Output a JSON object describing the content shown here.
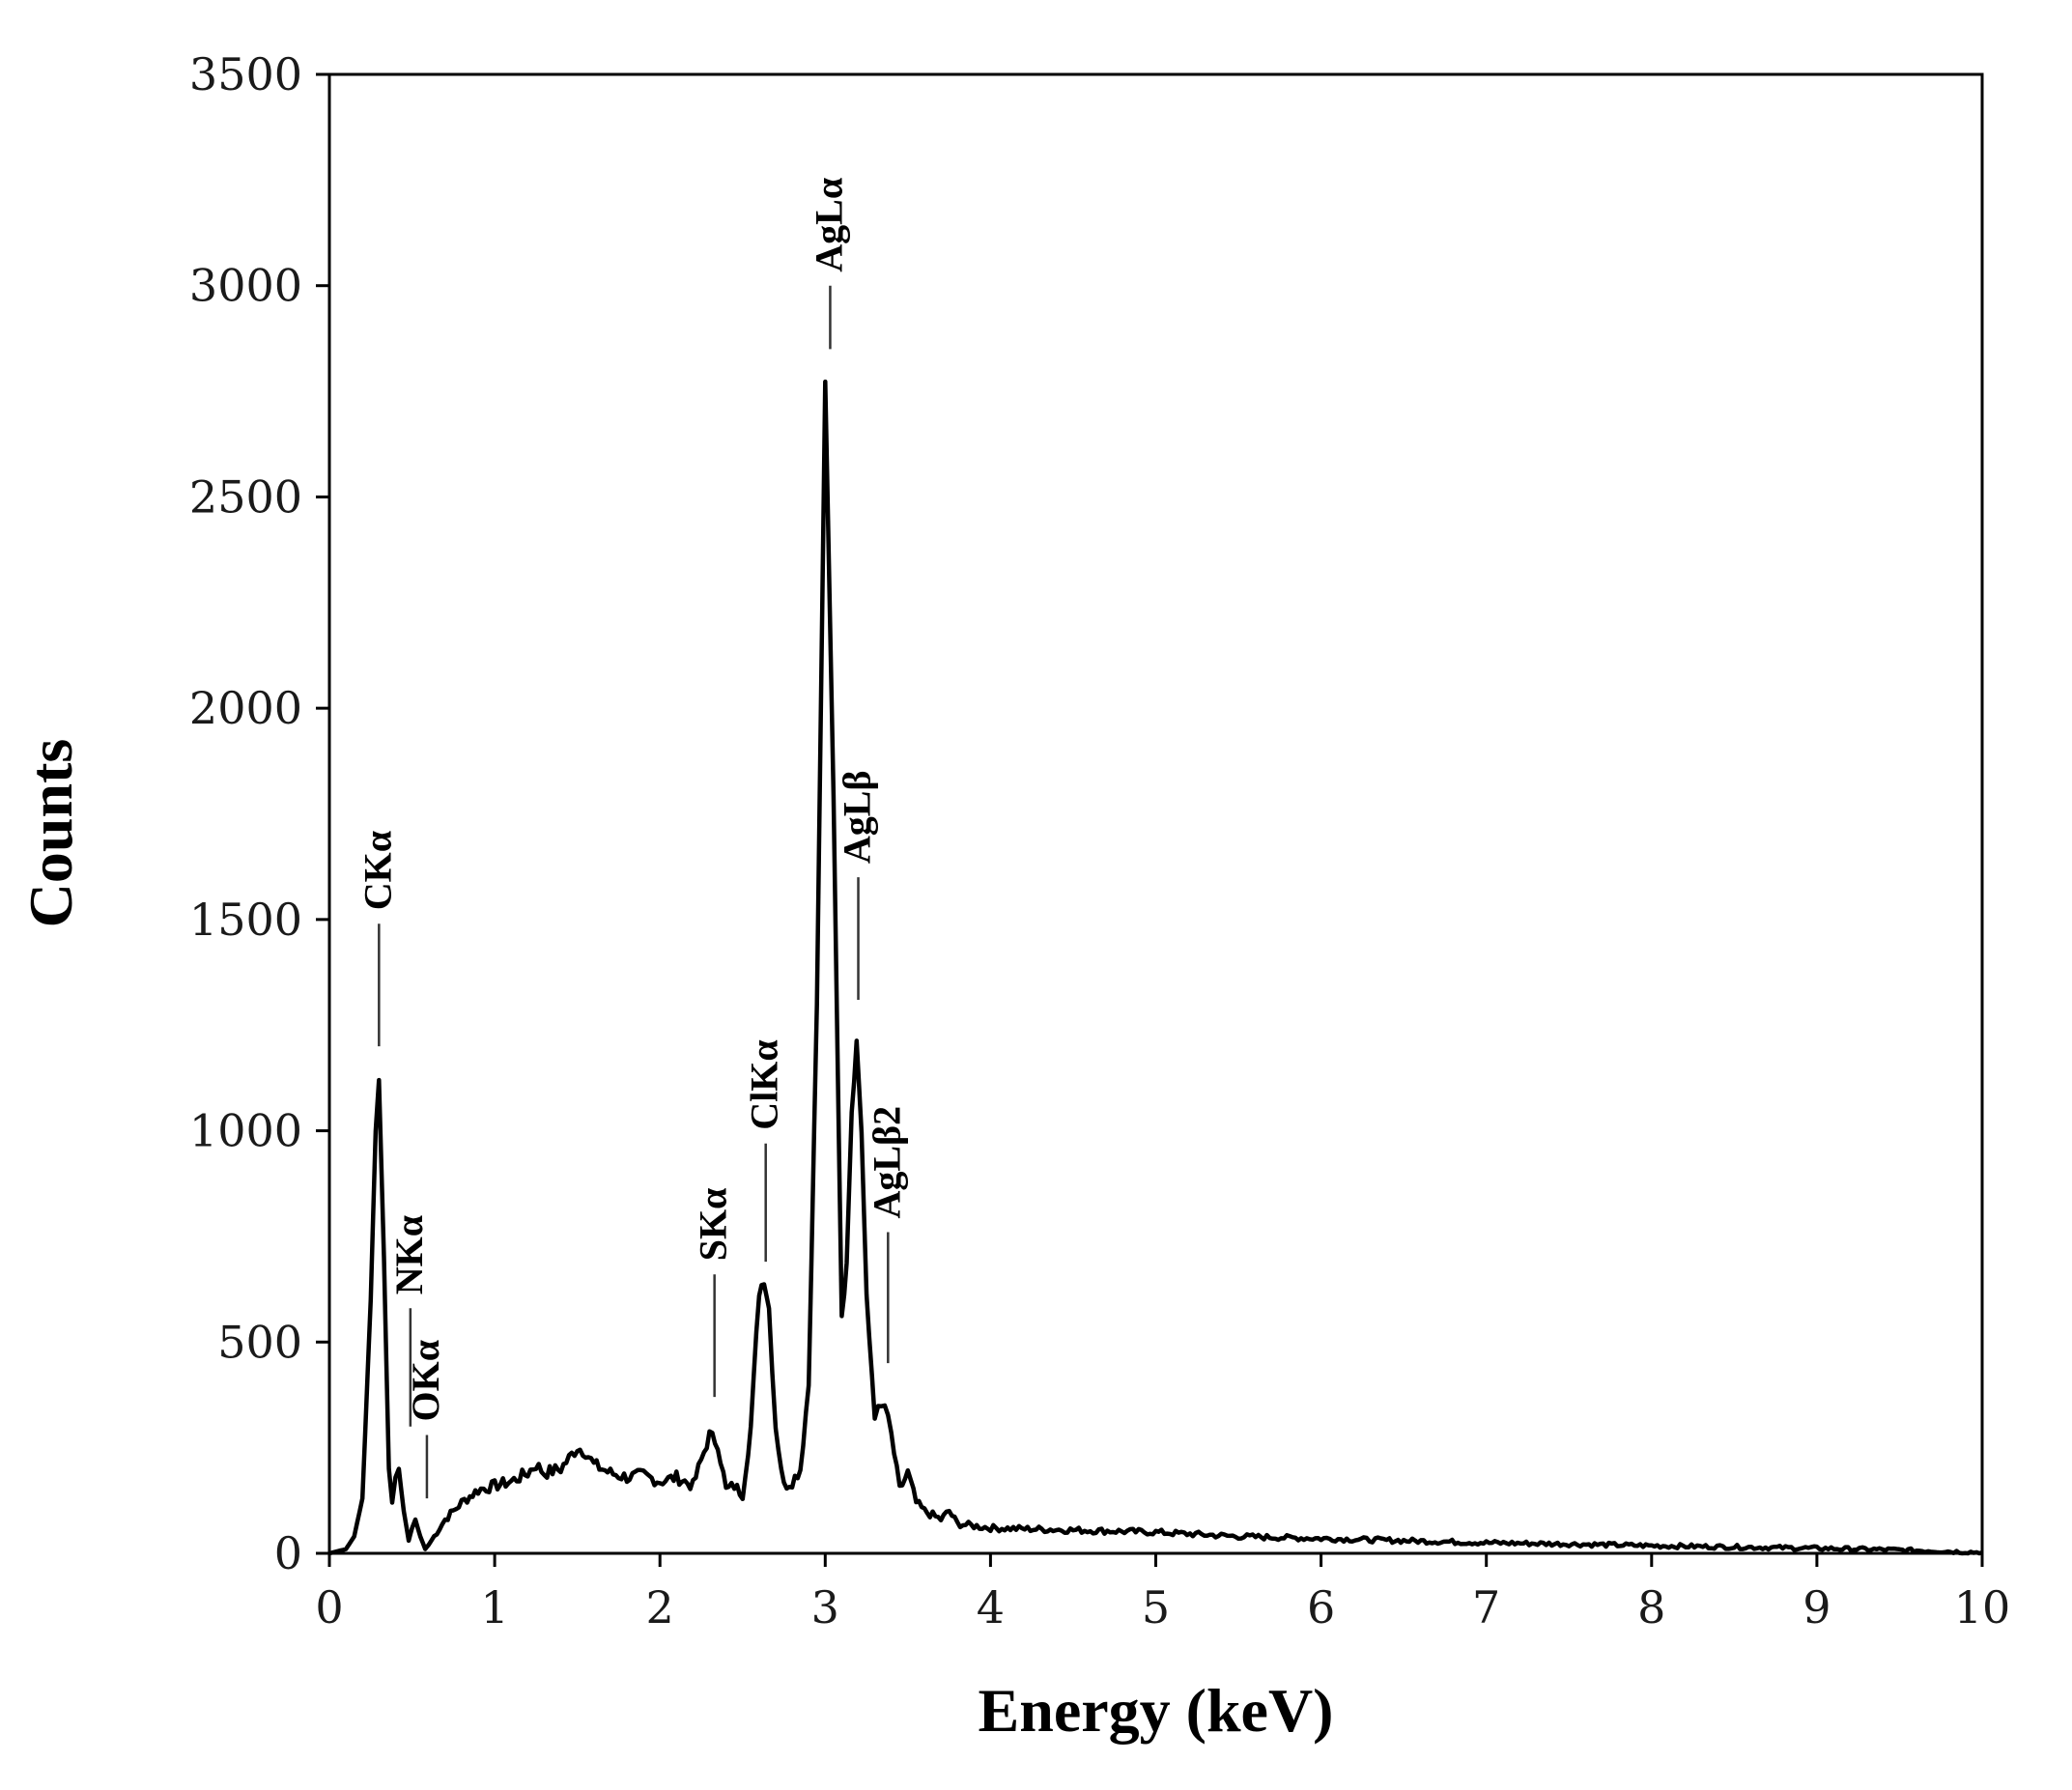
{
  "chart_data": {
    "type": "line",
    "title": "",
    "xlabel": "Energy (keV)",
    "ylabel": "Counts",
    "xlim": [
      0,
      10
    ],
    "ylim": [
      0,
      3500
    ],
    "x_ticks": [
      "0",
      "1",
      "2",
      "3",
      "4",
      "5",
      "6",
      "7",
      "8",
      "9",
      "10"
    ],
    "y_ticks": [
      "0",
      "500",
      "1000",
      "1500",
      "2000",
      "2500",
      "3000",
      "3500"
    ],
    "grid": false,
    "legend": "none",
    "line_color": "#000000",
    "series": [
      {
        "x": [
          0.0,
          0.1,
          0.15,
          0.2,
          0.25,
          0.28,
          0.3,
          0.33,
          0.36,
          0.38,
          0.4,
          0.42,
          0.45,
          0.48,
          0.5,
          0.52,
          0.55,
          0.58,
          0.6,
          0.65,
          0.7,
          0.8,
          0.9,
          1.0,
          1.1,
          1.2,
          1.25,
          1.3,
          1.4,
          1.5,
          1.55,
          1.6,
          1.7,
          1.8,
          1.9,
          2.0,
          2.1,
          2.2,
          2.25,
          2.3,
          2.35,
          2.4,
          2.45,
          2.5,
          2.55,
          2.6,
          2.63,
          2.66,
          2.7,
          2.75,
          2.8,
          2.85,
          2.9,
          2.95,
          3.0,
          3.05,
          3.1,
          3.13,
          3.16,
          3.19,
          3.22,
          3.25,
          3.3,
          3.36,
          3.4,
          3.45,
          3.5,
          3.55,
          3.6,
          3.7,
          3.75,
          3.8,
          3.9,
          4.0,
          4.5,
          5.0,
          5.5,
          6.0,
          6.5,
          7.0,
          7.5,
          8.0,
          8.5,
          9.0,
          9.5,
          10.0
        ],
        "y": [
          0,
          10,
          40,
          130,
          600,
          1000,
          1120,
          700,
          200,
          120,
          180,
          200,
          100,
          30,
          60,
          80,
          40,
          10,
          20,
          50,
          80,
          120,
          150,
          160,
          170,
          190,
          210,
          190,
          200,
          250,
          240,
          210,
          190,
          180,
          185,
          170,
          180,
          160,
          220,
          280,
          260,
          150,
          160,
          140,
          300,
          620,
          650,
          580,
          300,
          160,
          170,
          200,
          400,
          1300,
          2760,
          1800,
          550,
          700,
          1050,
          1210,
          1000,
          600,
          330,
          350,
          280,
          150,
          190,
          120,
          100,
          80,
          100,
          70,
          65,
          60,
          55,
          50,
          40,
          35,
          30,
          25,
          22,
          18,
          15,
          12,
          8,
          2
        ]
      }
    ],
    "annotations": [
      {
        "text": "CKα",
        "x": 0.3,
        "y_top": 1490,
        "y_bottom": 1200
      },
      {
        "text": "NKα",
        "x": 0.49,
        "y_top": 580,
        "y_bottom": 300
      },
      {
        "text": "OKα",
        "x": 0.59,
        "y_top": 280,
        "y_bottom": 130
      },
      {
        "text": "SKα",
        "x": 2.33,
        "y_top": 660,
        "y_bottom": 370
      },
      {
        "text": "ClKα",
        "x": 2.64,
        "y_top": 970,
        "y_bottom": 690
      },
      {
        "text": "AgLα",
        "x": 3.03,
        "y_top": 3000,
        "y_bottom": 2850
      },
      {
        "text": "AgLβ",
        "x": 3.2,
        "y_top": 1600,
        "y_bottom": 1310
      },
      {
        "text": "AgLβ2",
        "x": 3.38,
        "y_top": 760,
        "y_bottom": 450
      }
    ]
  }
}
